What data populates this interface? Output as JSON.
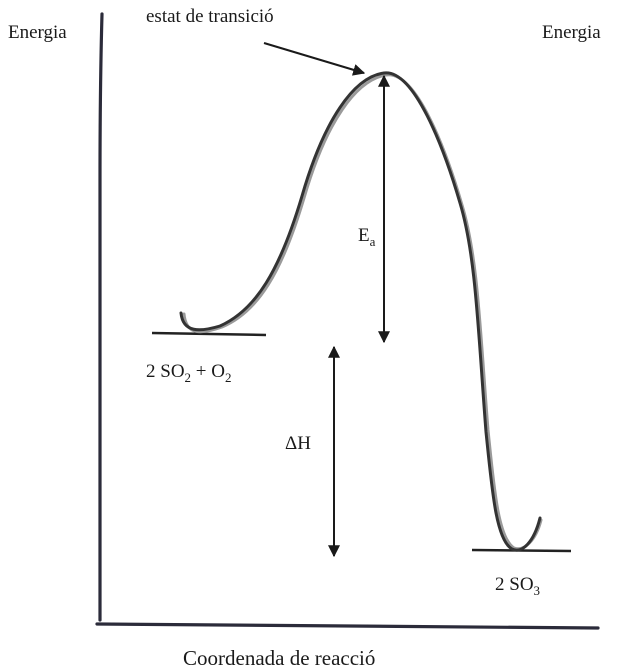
{
  "diagram": {
    "y_axis_label_left": "Energia",
    "y_axis_label_right": "Energia",
    "x_axis_label": "Coordenada de reacció",
    "transition_state_label": "estat de transició",
    "activation_energy": {
      "symbol": "E",
      "subscript": "a"
    },
    "enthalpy_change": {
      "symbol": "ΔH"
    },
    "reactants": {
      "part1": "2 SO",
      "sub1": "2",
      "part2": " + O",
      "sub2": "2"
    },
    "products": {
      "part1": "2 SO",
      "sub1": "3"
    },
    "colors": {
      "ink": "#1a1a1a",
      "curve": "#333333",
      "curve_shadow": "#999999",
      "axis": "#2b2b3a"
    }
  }
}
